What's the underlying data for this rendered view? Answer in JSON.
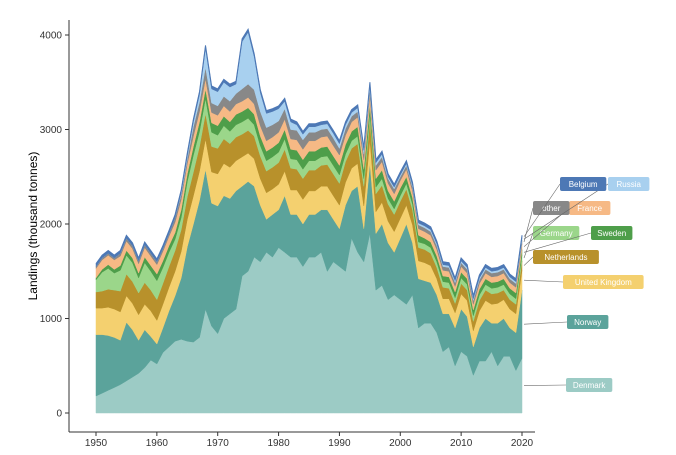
{
  "chart_data": {
    "type": "area",
    "stacked": true,
    "title": "",
    "xlabel": "",
    "ylabel": "Landings (thousand tonnes)",
    "xlim": [
      1950,
      2020
    ],
    "ylim": [
      0,
      4000
    ],
    "x_ticks": [
      1950,
      1960,
      1970,
      1980,
      1990,
      2000,
      2010,
      2020
    ],
    "y_ticks": [
      0,
      1000,
      2000,
      3000,
      4000
    ],
    "grid": false,
    "legend_position": "right (direct labels at series ends)",
    "x": [
      1950,
      1951,
      1952,
      1953,
      1954,
      1955,
      1956,
      1957,
      1958,
      1959,
      1960,
      1961,
      1962,
      1963,
      1964,
      1965,
      1966,
      1967,
      1968,
      1969,
      1970,
      1971,
      1972,
      1973,
      1974,
      1975,
      1976,
      1977,
      1978,
      1979,
      1980,
      1981,
      1982,
      1983,
      1984,
      1985,
      1986,
      1987,
      1988,
      1989,
      1990,
      1991,
      1992,
      1993,
      1994,
      1995,
      1996,
      1997,
      1998,
      1999,
      2000,
      2001,
      2002,
      2003,
      2004,
      2005,
      2006,
      2007,
      2008,
      2009,
      2010,
      2011,
      2012,
      2013,
      2014,
      2015,
      2016,
      2017,
      2018,
      2019,
      2020
    ],
    "series": [
      {
        "name": "Denmark",
        "color": "#9ccbc5",
        "values": [
          180,
          210,
          240,
          270,
          300,
          340,
          380,
          420,
          480,
          560,
          520,
          640,
          700,
          760,
          780,
          760,
          750,
          800,
          1100,
          920,
          840,
          1000,
          1050,
          1100,
          1450,
          1500,
          1650,
          1600,
          1700,
          1650,
          1750,
          1700,
          1650,
          1650,
          1550,
          1650,
          1650,
          1700,
          1500,
          1600,
          1550,
          1500,
          1850,
          1700,
          1600,
          1900,
          1300,
          1350,
          1200,
          1250,
          1200,
          1150,
          1250,
          900,
          950,
          950,
          850,
          650,
          700,
          500,
          650,
          600,
          400,
          550,
          550,
          650,
          500,
          600,
          600,
          450,
          580
        ]
      },
      {
        "name": "Norway",
        "color": "#5ba39b",
        "values": [
          650,
          620,
          580,
          530,
          470,
          620,
          500,
          350,
          400,
          250,
          210,
          260,
          380,
          480,
          650,
          1000,
          1250,
          1450,
          1480,
          1300,
          1350,
          1300,
          1220,
          1250,
          950,
          950,
          750,
          600,
          350,
          450,
          400,
          600,
          450,
          450,
          450,
          450,
          450,
          450,
          650,
          450,
          400,
          700,
          500,
          700,
          350,
          750,
          600,
          650,
          600,
          450,
          650,
          850,
          550,
          520,
          450,
          430,
          400,
          400,
          350,
          400,
          450,
          420,
          300,
          350,
          450,
          300,
          450,
          400,
          300,
          400,
          720
        ]
      },
      {
        "name": "United Kingdom",
        "color": "#f4d06f",
        "values": [
          280,
          280,
          300,
          300,
          300,
          280,
          280,
          270,
          270,
          270,
          250,
          250,
          250,
          260,
          280,
          290,
          300,
          310,
          320,
          330,
          340,
          340,
          330,
          320,
          310,
          300,
          290,
          280,
          280,
          270,
          270,
          260,
          260,
          260,
          260,
          250,
          250,
          250,
          250,
          250,
          250,
          240,
          240,
          240,
          240,
          240,
          230,
          230,
          230,
          220,
          210,
          200,
          190,
          190,
          190,
          180,
          170,
          160,
          160,
          160,
          160,
          170,
          170,
          180,
          190,
          200,
          210,
          200,
          200,
          200,
          210
        ]
      },
      {
        "name": "Netherlands",
        "color": "#b8912b",
        "values": [
          170,
          180,
          190,
          200,
          220,
          230,
          230,
          230,
          230,
          220,
          220,
          220,
          220,
          220,
          230,
          240,
          250,
          260,
          270,
          270,
          270,
          260,
          250,
          250,
          240,
          240,
          240,
          240,
          230,
          230,
          230,
          230,
          230,
          220,
          220,
          220,
          220,
          220,
          230,
          230,
          230,
          220,
          210,
          210,
          210,
          210,
          190,
          180,
          180,
          180,
          180,
          170,
          160,
          140,
          140,
          130,
          120,
          120,
          110,
          100,
          110,
          110,
          100,
          110,
          110,
          110,
          110,
          100,
          100,
          100,
          100
        ]
      },
      {
        "name": "Germany",
        "color": "#9bd68a",
        "values": [
          130,
          200,
          220,
          180,
          220,
          200,
          200,
          160,
          210,
          200,
          200,
          170,
          150,
          120,
          130,
          160,
          180,
          160,
          160,
          150,
          140,
          140,
          130,
          130,
          130,
          130,
          120,
          110,
          110,
          110,
          110,
          110,
          100,
          100,
          100,
          100,
          100,
          90,
          90,
          90,
          90,
          80,
          80,
          80,
          80,
          70,
          70,
          70,
          60,
          60,
          60,
          60,
          60,
          60,
          60,
          60,
          60,
          60,
          60,
          60,
          60,
          60,
          60,
          60,
          60,
          60,
          60,
          60,
          60,
          60,
          60
        ]
      },
      {
        "name": "Sweden",
        "color": "#4e9e4a",
        "values": [
          20,
          30,
          40,
          40,
          50,
          50,
          50,
          50,
          60,
          60,
          70,
          70,
          70,
          70,
          80,
          80,
          90,
          100,
          100,
          100,
          100,
          100,
          100,
          110,
          110,
          110,
          110,
          100,
          100,
          100,
          100,
          100,
          100,
          100,
          100,
          100,
          100,
          100,
          100,
          100,
          100,
          100,
          100,
          100,
          100,
          100,
          90,
          90,
          80,
          80,
          80,
          70,
          70,
          70,
          60,
          60,
          60,
          60,
          60,
          60,
          60,
          60,
          60,
          60,
          60,
          60,
          60,
          60,
          60,
          60,
          60
        ]
      },
      {
        "name": "France",
        "color": "#f6b985",
        "values": [
          100,
          100,
          100,
          100,
          100,
          100,
          100,
          100,
          100,
          100,
          100,
          100,
          100,
          110,
          110,
          110,
          110,
          110,
          110,
          110,
          110,
          110,
          110,
          110,
          110,
          110,
          110,
          110,
          110,
          110,
          110,
          110,
          110,
          110,
          110,
          110,
          110,
          110,
          110,
          110,
          110,
          100,
          100,
          100,
          100,
          100,
          90,
          90,
          80,
          80,
          80,
          80,
          70,
          70,
          70,
          70,
          70,
          60,
          60,
          60,
          60,
          60,
          60,
          60,
          60,
          60,
          60,
          60,
          60,
          60,
          60
        ]
      },
      {
        "name": "other",
        "color": "#888888",
        "values": [
          20,
          20,
          20,
          20,
          30,
          30,
          30,
          30,
          30,
          30,
          30,
          30,
          30,
          50,
          50,
          50,
          100,
          100,
          120,
          100,
          100,
          100,
          110,
          110,
          130,
          140,
          150,
          150,
          140,
          130,
          120,
          110,
          100,
          100,
          100,
          90,
          90,
          80,
          80,
          80,
          70,
          70,
          60,
          60,
          60,
          60,
          50,
          50,
          50,
          50,
          40,
          40,
          40,
          40,
          40,
          40,
          40,
          40,
          40,
          40,
          40,
          40,
          40,
          40,
          40,
          40,
          40,
          40,
          40,
          40,
          40
        ]
      },
      {
        "name": "Russia",
        "color": "#a8d0ef",
        "values": [
          0,
          0,
          0,
          0,
          0,
          0,
          0,
          0,
          0,
          0,
          0,
          0,
          0,
          0,
          20,
          30,
          50,
          80,
          200,
          150,
          150,
          150,
          150,
          100,
          500,
          550,
          350,
          200,
          150,
          140,
          130,
          80,
          80,
          60,
          60,
          60,
          60,
          50,
          50,
          50,
          50,
          40,
          40,
          40,
          40,
          40,
          30,
          30,
          20,
          20,
          20,
          20,
          20,
          20,
          20,
          20,
          20,
          20,
          20,
          20,
          20,
          20,
          20,
          20,
          20,
          20,
          20,
          20,
          20,
          20,
          20
        ]
      },
      {
        "name": "Belgium",
        "color": "#4d78b5",
        "values": [
          30,
          30,
          30,
          30,
          30,
          30,
          30,
          30,
          30,
          30,
          30,
          30,
          30,
          30,
          30,
          30,
          30,
          30,
          30,
          30,
          30,
          30,
          30,
          30,
          30,
          30,
          30,
          30,
          30,
          30,
          30,
          30,
          30,
          30,
          30,
          30,
          30,
          30,
          30,
          30,
          30,
          30,
          30,
          30,
          30,
          30,
          30,
          30,
          30,
          30,
          30,
          30,
          30,
          30,
          30,
          30,
          30,
          30,
          30,
          30,
          30,
          30,
          30,
          30,
          30,
          30,
          30,
          30,
          30,
          30,
          30
        ]
      }
    ]
  }
}
